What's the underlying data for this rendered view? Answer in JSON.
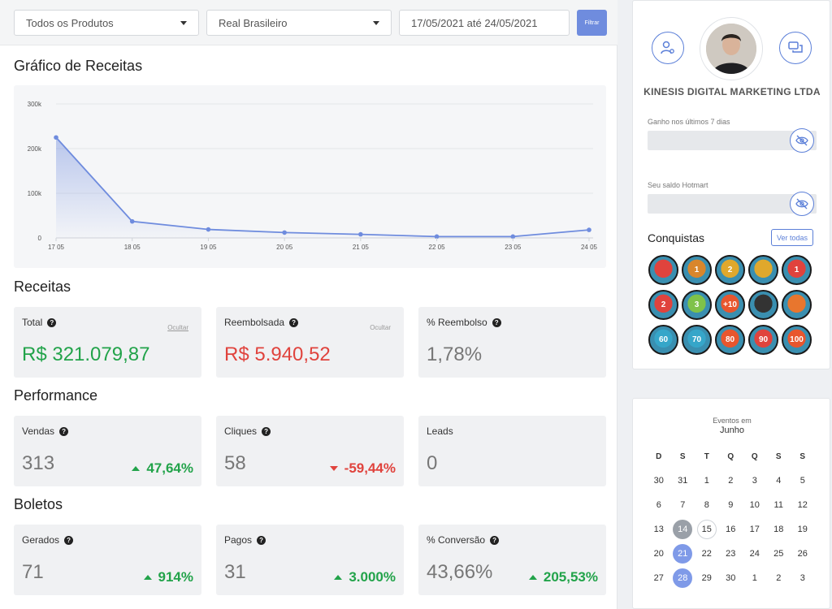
{
  "filters": {
    "product": "Todos os Produtos",
    "currency": "Real Brasileiro",
    "date_range": "17/05/2021 até 24/05/2021",
    "filter_button": "Filtrar"
  },
  "revenue_chart": {
    "title": "Gráfico de Receitas"
  },
  "chart_data": {
    "type": "area",
    "categories": [
      "17 05",
      "18 05",
      "19 05",
      "20 05",
      "21 05",
      "22 05",
      "23 05",
      "24 05"
    ],
    "values": [
      225000,
      37000,
      19000,
      12000,
      8000,
      3000,
      3000,
      18000
    ],
    "ylim": [
      0,
      300000
    ],
    "yticks": [
      "0",
      "100k",
      "200k",
      "300k"
    ],
    "grid": true,
    "color": "#6f8cde"
  },
  "receitas": {
    "title": "Receitas",
    "total": {
      "label": "Total",
      "hide": "Ocultar",
      "value": "R$ 321.079,87"
    },
    "refund": {
      "label": "Reembolsada",
      "hide": "Ocultar",
      "value": "R$ 5.940,52"
    },
    "refund_pct": {
      "label": "% Reembolso",
      "value": "1,78%"
    }
  },
  "performance": {
    "title": "Performance",
    "sales": {
      "label": "Vendas",
      "value": "313",
      "delta": "47,64%"
    },
    "clicks": {
      "label": "Cliques",
      "value": "58",
      "delta": "-59,44%"
    },
    "leads": {
      "label": "Leads",
      "value": "0"
    }
  },
  "boletos": {
    "title": "Boletos",
    "generated": {
      "label": "Gerados",
      "value": "71",
      "delta": "914%"
    },
    "paid": {
      "label": "Pagos",
      "value": "31",
      "delta": "3.000%"
    },
    "conversion": {
      "label": "% Conversão",
      "value": "43,66%",
      "delta": "205,53%"
    }
  },
  "profile": {
    "company": "KINESIS DIGITAL MARKETING LTDA",
    "earnings_label": "Ganho nos últimos 7 dias",
    "balance_label": "Seu saldo Hotmart",
    "achievements_title": "Conquistas",
    "see_all": "Ver todas",
    "badges": [
      {
        "text": "",
        "color": "#e0433d"
      },
      {
        "text": "1",
        "color": "#d9862c"
      },
      {
        "text": "2",
        "color": "#e0a82c"
      },
      {
        "text": "",
        "color": "#e0a82c"
      },
      {
        "text": "1",
        "color": "#e0433d"
      },
      {
        "text": "2",
        "color": "#e0433d"
      },
      {
        "text": "3",
        "color": "#7fc24a"
      },
      {
        "text": "+10",
        "color": "#e8562e"
      },
      {
        "text": "",
        "color": "#333"
      },
      {
        "text": "",
        "color": "#e8762e"
      },
      {
        "text": "60",
        "color": "#36a6c9"
      },
      {
        "text": "70",
        "color": "#36a6c9"
      },
      {
        "text": "80",
        "color": "#e8562e"
      },
      {
        "text": "90",
        "color": "#e0433d"
      },
      {
        "text": "100",
        "color": "#e8562e"
      }
    ]
  },
  "calendar": {
    "subtitle": "Eventos em",
    "month": "Junho",
    "weekdays": [
      "D",
      "S",
      "T",
      "Q",
      "Q",
      "S",
      "S"
    ],
    "days": [
      "30",
      "31",
      "1",
      "2",
      "3",
      "4",
      "5",
      "6",
      "7",
      "8",
      "9",
      "10",
      "11",
      "12",
      "13",
      "14",
      "15",
      "16",
      "17",
      "18",
      "19",
      "20",
      "21",
      "22",
      "23",
      "24",
      "25",
      "26",
      "27",
      "28",
      "29",
      "30",
      "1",
      "2",
      "3"
    ]
  }
}
